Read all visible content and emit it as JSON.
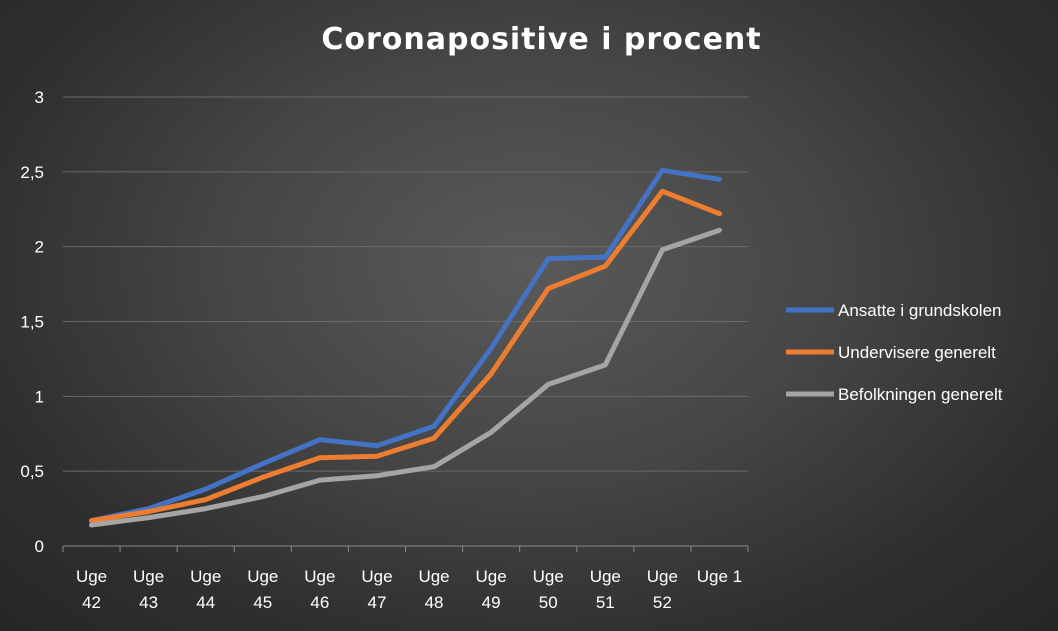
{
  "chart_data": {
    "type": "line",
    "title": "Coronapositive  i procent",
    "xlabel": "",
    "ylabel": "",
    "categories": [
      "Uge 42",
      "Uge 43",
      "Uge 44",
      "Uge 45",
      "Uge 46",
      "Uge 47",
      "Uge 48",
      "Uge 49",
      "Uge 50",
      "Uge 51",
      "Uge 52",
      "Uge 1"
    ],
    "ylim": [
      0,
      3
    ],
    "yticks": [
      "0",
      "0,5",
      "1",
      "1,5",
      "2",
      "2,5",
      "3"
    ],
    "grid": true,
    "legend_position": "right",
    "series": [
      {
        "name": "Ansatte i grundskolen",
        "color": "#4472c4",
        "values": [
          0.17,
          0.25,
          0.38,
          0.55,
          0.71,
          0.67,
          0.8,
          1.32,
          1.92,
          1.93,
          2.51,
          2.45
        ]
      },
      {
        "name": "Undervisere generelt",
        "color": "#ed7d31",
        "values": [
          0.17,
          0.23,
          0.31,
          0.46,
          0.59,
          0.6,
          0.72,
          1.15,
          1.72,
          1.87,
          2.37,
          2.22
        ]
      },
      {
        "name": "Befolkningen generelt",
        "color": "#a5a5a5",
        "values": [
          0.14,
          0.19,
          0.25,
          0.33,
          0.44,
          0.47,
          0.53,
          0.76,
          1.08,
          1.21,
          1.98,
          2.11
        ]
      }
    ]
  }
}
